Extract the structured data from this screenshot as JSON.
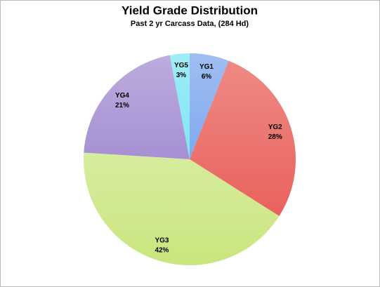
{
  "chart_data": {
    "type": "pie",
    "title": "Yield Grade Distribution",
    "subtitle": "Past 2 yr Carcass Data, (284 Hd)",
    "categories": [
      "YG1",
      "YG2",
      "YG3",
      "YG4",
      "YG5"
    ],
    "values": [
      6,
      28,
      42,
      21,
      3
    ],
    "value_labels": [
      "6%",
      "28%",
      "42%",
      "21%",
      "3%"
    ],
    "colors": [
      "#7fa9ee",
      "#e9625c",
      "#c9e67e",
      "#a690d3",
      "#7fe6f4"
    ]
  }
}
